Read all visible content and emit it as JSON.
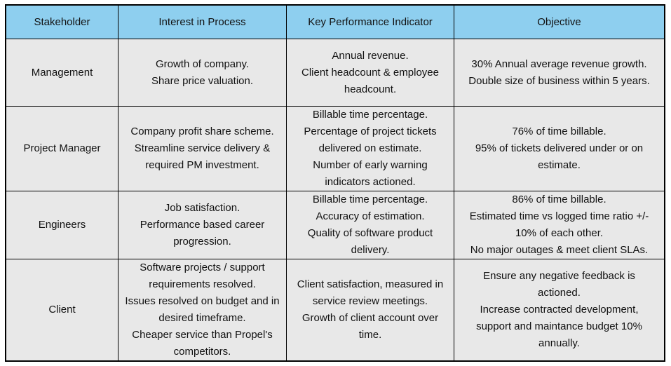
{
  "header": {
    "stakeholder": "Stakeholder",
    "interest": "Interest in Process",
    "kpi": "Key Performance Indicator",
    "objective": "Objective"
  },
  "rows": [
    {
      "stakeholder": "Management",
      "interest": [
        "Growth of company.",
        "Share price valuation."
      ],
      "kpi": [
        "Annual revenue.",
        "Client headcount & employee",
        "headcount."
      ],
      "objective": [
        "30% Annual average revenue growth.",
        "Double size of business within 5 years."
      ]
    },
    {
      "stakeholder": "Project Manager",
      "interest": [
        "Company profit share scheme.",
        "Streamline service delivery &",
        "required PM investment."
      ],
      "kpi": [
        "Billable time percentage.",
        "Percentage of project tickets",
        "delivered on estimate.",
        "Number of early warning",
        "indicators actioned."
      ],
      "objective": [
        "76% of time billable.",
        "95% of tickets delivered under or on",
        "estimate."
      ]
    },
    {
      "stakeholder": "Engineers",
      "interest": [
        "Job satisfaction.",
        "Performance based career",
        "progression."
      ],
      "kpi": [
        "Billable time percentage.",
        "Accuracy of estimation.",
        "Quality of software product",
        "delivery."
      ],
      "objective": [
        "86% of time billable.",
        "Estimated time vs logged time ratio +/-",
        "10% of each other.",
        "No major outages & meet client SLAs."
      ]
    },
    {
      "stakeholder": "Client",
      "interest": [
        "Software projects / support",
        "requirements resolved.",
        "Issues resolved on budget and in",
        "desired timeframe.",
        "Cheaper service than Propel's",
        "competitors."
      ],
      "kpi": [
        "Client satisfaction, measured in",
        "service review meetings.",
        "Growth of client account over",
        "time."
      ],
      "objective": [
        "Ensure any negative feedback is",
        "actioned.",
        "Increase contracted development,",
        "support and maintance budget 10%",
        "annually."
      ]
    }
  ]
}
